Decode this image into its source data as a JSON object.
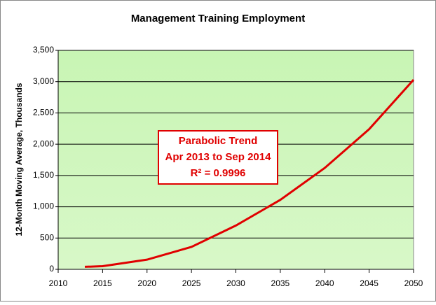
{
  "chart_data": {
    "type": "line",
    "title": "Management Training Employment",
    "ylabel": "12-Month Moving Average, Thousands",
    "x": [
      2013,
      2015,
      2020,
      2025,
      2030,
      2035,
      2040,
      2045,
      2050
    ],
    "series": [
      {
        "name": "Parabolic Trend",
        "color": "#e00000",
        "values": [
          40,
          50,
          155,
          358,
          700,
          1110,
          1620,
          2240,
          3030
        ]
      }
    ],
    "xlim": [
      2010,
      2050
    ],
    "xticks": [
      2010,
      2015,
      2020,
      2025,
      2030,
      2035,
      2040,
      2045,
      2050
    ],
    "ylim": [
      0,
      3500
    ],
    "yticks": [
      0,
      500,
      {
        "value": 1000,
        "label": "1,000"
      },
      {
        "value": 1500,
        "label": "1,500"
      },
      {
        "value": 2000,
        "label": "2,000"
      },
      {
        "value": 2500,
        "label": "2,500"
      },
      {
        "value": 3000,
        "label": "3,000"
      },
      {
        "value": 3500,
        "label": "3,500"
      }
    ],
    "grid": true,
    "annotation": [
      "Parabolic Trend",
      "Apr 2013 to Sep 2014",
      "R² = 0.9996"
    ]
  }
}
